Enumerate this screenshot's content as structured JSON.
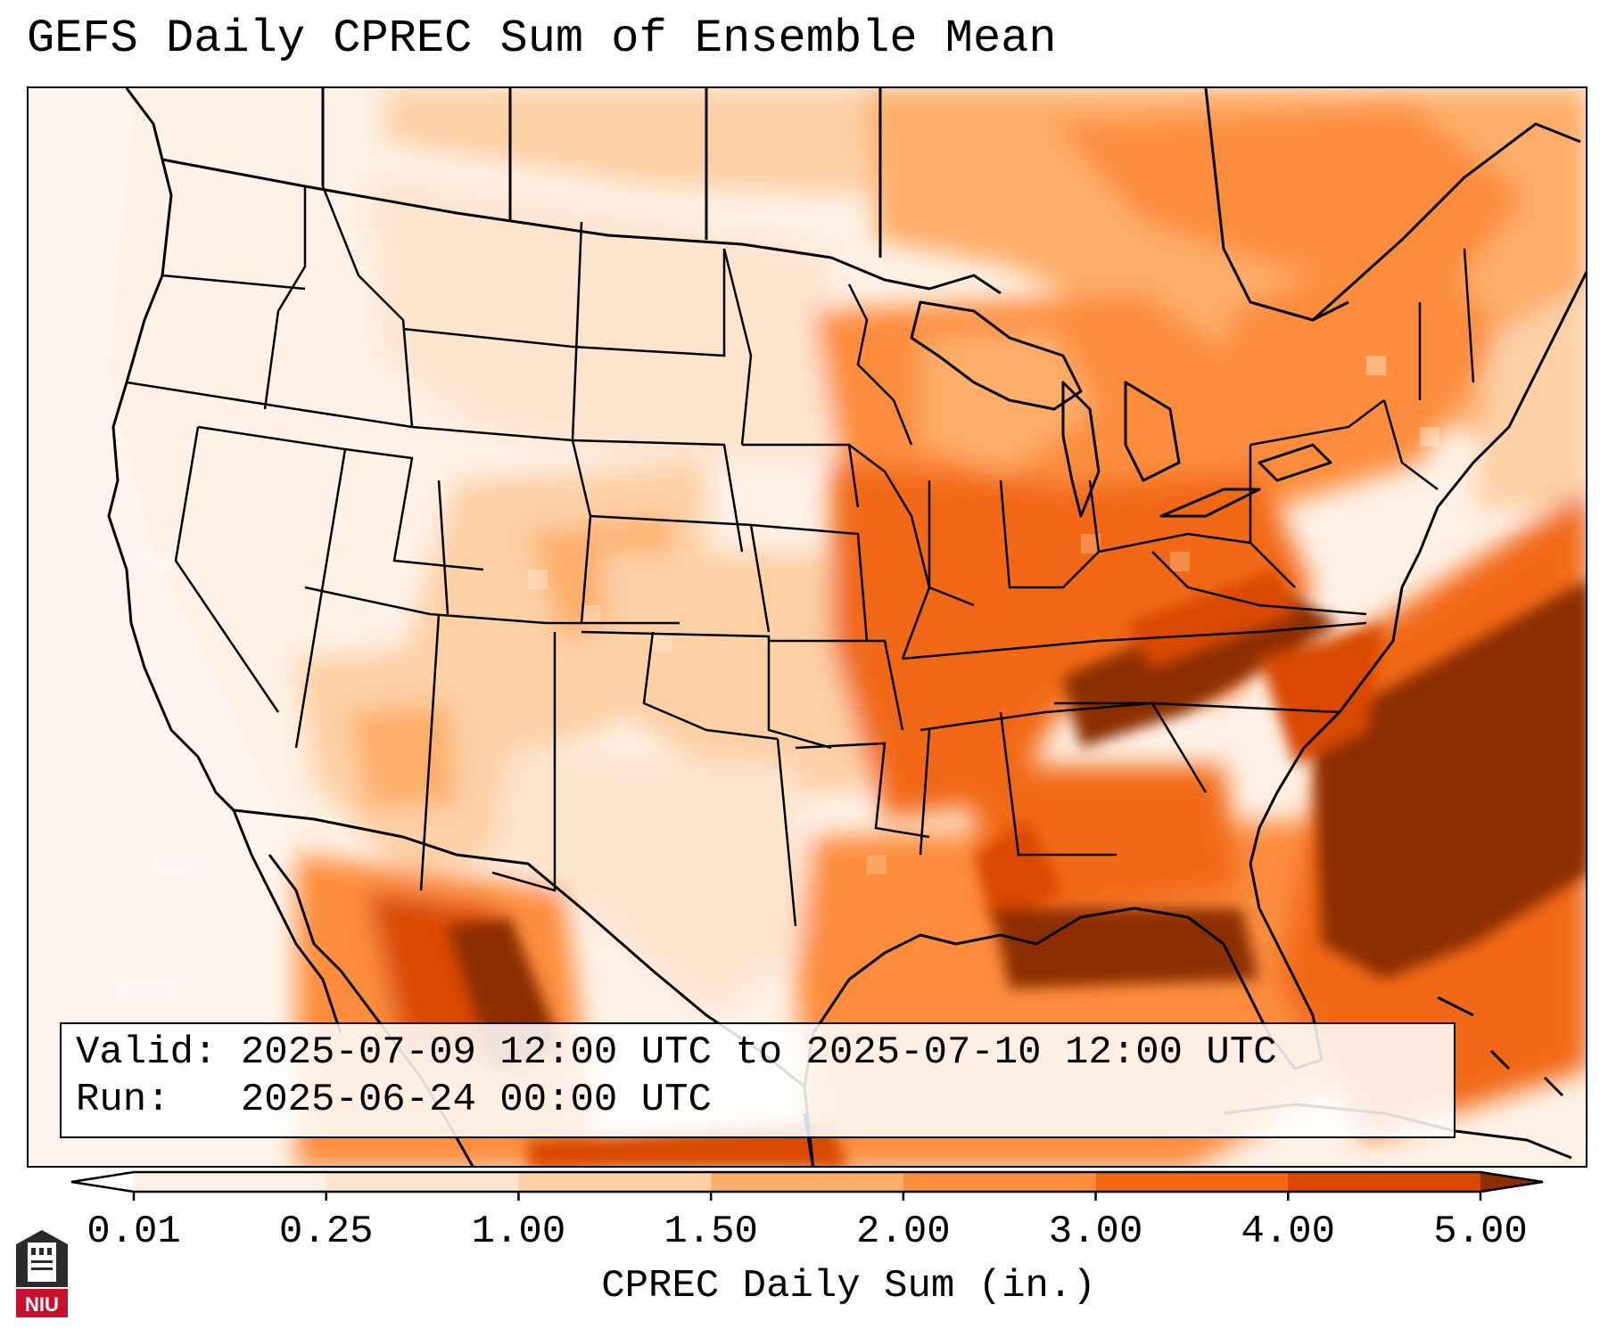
{
  "title": "GEFS Daily CPREC Sum of Ensemble Mean",
  "info": {
    "valid_label": "Valid:",
    "valid_value": "2025-07-09 12:00 UTC to 2025-07-10 12:00 UTC",
    "run_label": "Run:",
    "run_value": "2025-06-24 00:00 UTC"
  },
  "colorbar": {
    "label": "CPREC Daily Sum (in.)",
    "ticks": [
      "0.01",
      "0.25",
      "1.00",
      "1.50",
      "2.00",
      "3.00",
      "4.00",
      "5.00"
    ],
    "colors": [
      "#fff1e6",
      "#fde4cf",
      "#fdd0a6",
      "#fdae6b",
      "#fd8d3c",
      "#f16913",
      "#d94801",
      "#8c2d04"
    ],
    "extend": "both"
  },
  "logo": {
    "text": "NIU"
  },
  "map": {
    "region": "Contiguous United States",
    "field": "CPREC daily sum",
    "heaviest_areas": [
      "Tennessee Valley",
      "Southeast / western Atlantic",
      "Gulf Coast",
      "Sierra Madre Occidental"
    ]
  }
}
